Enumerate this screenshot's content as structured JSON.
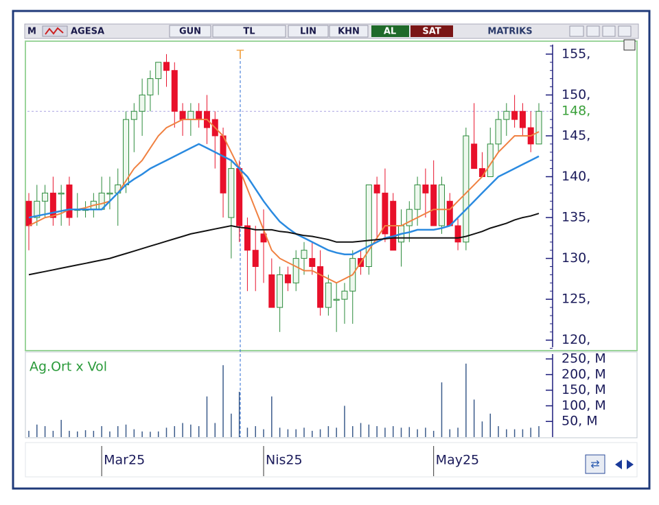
{
  "toolbar": {
    "logo": "M",
    "symbol": "AGESA",
    "period": "GUN",
    "currency": "TL",
    "scale": "LIN",
    "mode": "KHN",
    "buy": "AL",
    "sell": "SAT",
    "brand": "MATRIKS"
  },
  "chart_data": {
    "type": "candlestick",
    "categories": [
      null,
      null,
      null,
      null,
      null,
      null,
      null,
      null,
      null,
      "Mar25",
      null,
      null,
      null,
      null,
      null,
      null,
      null,
      null,
      null,
      null,
      null,
      null,
      null,
      null,
      null,
      null,
      null,
      null,
      null,
      "Nis25",
      null,
      null,
      null,
      null,
      null,
      null,
      null,
      null,
      null,
      null,
      null,
      null,
      null,
      null,
      null,
      null,
      null,
      null,
      null,
      null,
      "May25",
      null,
      null,
      null,
      null,
      null,
      null,
      null,
      null,
      null,
      null,
      null,
      null,
      null
    ],
    "open": [
      137,
      135,
      137,
      138,
      138,
      139,
      136,
      136,
      136,
      136,
      138,
      138,
      139,
      147,
      148,
      150,
      152,
      154,
      153,
      148,
      147,
      148,
      148,
      147,
      145,
      135,
      141,
      134,
      131,
      133,
      128,
      124,
      128,
      127,
      130,
      130,
      129,
      124,
      125,
      125,
      126,
      130,
      129,
      139,
      138,
      137,
      132,
      134,
      136,
      139,
      139,
      134,
      137,
      134,
      132,
      144,
      141,
      140,
      144,
      147,
      148,
      148,
      146,
      144
    ],
    "high": [
      138,
      139,
      139,
      140,
      139,
      140,
      138,
      137,
      138,
      140,
      140,
      141,
      148,
      149,
      152,
      153,
      154,
      155,
      154,
      149,
      149,
      149,
      150,
      148,
      146,
      142,
      142,
      135,
      134,
      136,
      130,
      129,
      129,
      131,
      132,
      132,
      131,
      128,
      127,
      127,
      131,
      131,
      139,
      140,
      141,
      138,
      136,
      137,
      140,
      141,
      142,
      140,
      138,
      135,
      146,
      149,
      143,
      146,
      148,
      149,
      150,
      149,
      148,
      149
    ],
    "low": [
      131,
      134,
      135,
      134,
      134,
      134,
      135,
      135,
      135,
      136,
      136,
      134,
      138,
      143,
      145,
      148,
      150,
      151,
      146,
      145,
      145,
      146,
      144,
      141,
      135,
      130,
      132,
      126,
      126,
      127,
      124,
      121,
      126,
      126,
      128,
      128,
      123,
      123,
      121,
      122,
      122,
      128,
      128,
      132,
      132,
      131,
      129,
      132,
      134,
      135,
      134,
      133,
      134,
      131,
      131,
      141,
      140,
      140,
      143,
      145,
      146,
      145,
      143,
      144
    ],
    "close": [
      134,
      137,
      138,
      135,
      138,
      135,
      136,
      136,
      137,
      138,
      138,
      139,
      147,
      148,
      150,
      152,
      154,
      153,
      148,
      147,
      148,
      147,
      146,
      145,
      138,
      141,
      134,
      131,
      129,
      132,
      124,
      128,
      127,
      130,
      131,
      129,
      124,
      127,
      125,
      126,
      130,
      129,
      139,
      138,
      133,
      131,
      134,
      136,
      139,
      138,
      134,
      139,
      134,
      132,
      145,
      141,
      140,
      144,
      147,
      148,
      147,
      146,
      144,
      148
    ],
    "up_color": "#2a8a3a",
    "down_color": "#e8102a",
    "series": [
      {
        "color": "#f08040",
        "values": [
          134,
          134.5,
          135,
          135.2,
          135.5,
          136,
          136,
          136.2,
          136.5,
          136.7,
          137,
          138,
          139.5,
          141,
          142,
          143.5,
          145,
          146,
          146.5,
          147,
          147,
          147,
          147,
          146,
          145,
          143,
          141,
          138.5,
          136,
          133.5,
          131,
          130,
          129.5,
          129,
          128.5,
          128.5,
          128,
          127.5,
          127,
          127.5,
          128,
          129.5,
          131,
          132.5,
          134,
          134,
          134,
          134.5,
          135,
          135.5,
          136,
          136,
          136,
          137,
          138,
          139,
          140,
          141.5,
          143,
          144,
          145,
          145,
          145,
          145.5
        ]
      },
      {
        "color": "#2a8ae0",
        "values": [
          135,
          135.2,
          135.4,
          135.6,
          135.8,
          136,
          136,
          136,
          136,
          136,
          137,
          138,
          139,
          139.7,
          140.3,
          141,
          141.5,
          142,
          142.5,
          143,
          143.5,
          144,
          143.5,
          143,
          142.5,
          142,
          141,
          140,
          138.5,
          137,
          135.7,
          134.5,
          133.7,
          133,
          132.5,
          132,
          131.5,
          131,
          130.7,
          130.5,
          130.5,
          131,
          131.5,
          132,
          132.5,
          132.7,
          133,
          133.2,
          133.5,
          133.5,
          133.5,
          133.7,
          134,
          135,
          136,
          137,
          138,
          139,
          140,
          140.5,
          141,
          141.5,
          142,
          142.5
        ]
      },
      {
        "color": "#111111",
        "values": [
          128,
          128.2,
          128.4,
          128.6,
          128.8,
          129,
          129.2,
          129.4,
          129.6,
          129.8,
          130,
          130.3,
          130.6,
          130.9,
          131.2,
          131.5,
          131.8,
          132.1,
          132.4,
          132.7,
          133,
          133.2,
          133.4,
          133.6,
          133.8,
          134,
          133.8,
          133.7,
          133.5,
          133.5,
          133.5,
          133.3,
          133.2,
          133,
          132.8,
          132.7,
          132.5,
          132.3,
          132,
          132,
          132,
          132.1,
          132.2,
          132.3,
          132.4,
          132.5,
          132.5,
          132.5,
          132.5,
          132.5,
          132.5,
          132.5,
          132.5,
          132.5,
          132.7,
          133,
          133.3,
          133.7,
          134,
          134.3,
          134.7,
          135,
          135.2,
          135.5
        ]
      }
    ],
    "ylim": [
      118.8,
      156.5
    ],
    "yticks": [
      {
        "value": 155,
        "label": "155,"
      },
      {
        "value": 150,
        "label": "150,"
      },
      {
        "value": 145,
        "label": "145,"
      },
      {
        "value": 140,
        "label": "140,"
      },
      {
        "value": 135,
        "label": "135,"
      },
      {
        "value": 130,
        "label": "130,"
      },
      {
        "value": 125,
        "label": "125,"
      },
      {
        "value": 120,
        "label": "120,"
      }
    ],
    "last_price": {
      "value": 148,
      "label": "148,"
    },
    "cursor_label": "T",
    "volume": {
      "label": "Ag.Ort x Vol",
      "color": "#3a5a8a",
      "values": [
        20,
        40,
        35,
        20,
        55,
        20,
        18,
        22,
        20,
        35,
        18,
        35,
        40,
        25,
        18,
        17,
        18,
        30,
        35,
        45,
        40,
        35,
        130,
        45,
        230,
        75,
        145,
        30,
        35,
        25,
        130,
        30,
        25,
        25,
        30,
        20,
        25,
        35,
        30,
        100,
        35,
        45,
        40,
        35,
        30,
        35,
        30,
        32,
        25,
        30,
        20,
        175,
        25,
        30,
        235,
        120,
        50,
        75,
        35,
        25,
        25,
        25,
        30,
        35
      ],
      "ylim": [
        0,
        270
      ],
      "yticks": [
        {
          "value": 50,
          "label": "50, M"
        },
        {
          "value": 100,
          "label": "100, M"
        },
        {
          "value": 150,
          "label": "150, M"
        },
        {
          "value": 200,
          "label": "200, M"
        },
        {
          "value": 250,
          "label": "250, M"
        }
      ]
    }
  }
}
